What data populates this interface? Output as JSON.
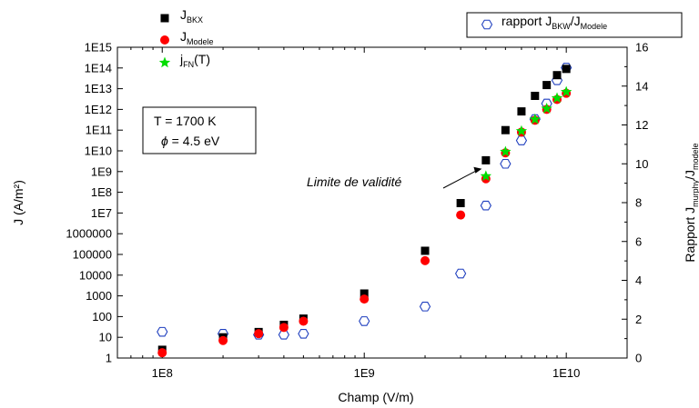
{
  "chart_data": {
    "type": "scatter",
    "x_axis": {
      "label": "Champ (V/m)",
      "scale": "log",
      "range": [
        60000000,
        20000000000
      ],
      "ticks": [
        {
          "value": 100000000,
          "label": "1E8"
        },
        {
          "value": 1000000000,
          "label": "1E9"
        },
        {
          "value": 10000000000,
          "label": "1E10"
        }
      ]
    },
    "y_left_axis": {
      "label": "J (A/m²)",
      "scale": "log",
      "range": [
        1,
        1000000000000000.0
      ],
      "tick_labels": [
        "1",
        "10",
        "100",
        "1000",
        "10000",
        "100000",
        "1000000",
        "1E7",
        "1E8",
        "1E9",
        "1E10",
        "1E11",
        "1E12",
        "1E13",
        "1E14",
        "1E15"
      ]
    },
    "y_right_axis": {
      "label_main": "Rapport J",
      "label_sub1": "murphy",
      "label_mid": "/J",
      "label_sub2": "modele",
      "scale": "linear",
      "range": [
        0,
        16
      ],
      "ticks": [
        0,
        2,
        4,
        6,
        8,
        10,
        12,
        14,
        16
      ]
    },
    "legend_left": {
      "position": "top-left",
      "entries": [
        {
          "series": "J_BKX",
          "main": "J",
          "sub": "BKX",
          "after": ""
        },
        {
          "series": "J_Modele",
          "main": "J",
          "sub": "Modele",
          "after": ""
        },
        {
          "series": "jFN",
          "main": "j",
          "sub": "FN",
          "after": "(T)"
        }
      ]
    },
    "legend_right": {
      "position": "top-right",
      "entries": [
        {
          "series": "ratio",
          "parts": [
            {
              "t": "rapport J",
              "sub": false
            },
            {
              "t": "BKW",
              "sub": true
            },
            {
              "t": "/J",
              "sub": false
            },
            {
              "t": "Modele",
              "sub": true
            }
          ]
        }
      ]
    },
    "params_box": {
      "line1": "T  = 1700 K",
      "line2_symbol": "ϕ",
      "line2_text": " = 4.5 eV"
    },
    "annotation": {
      "text": "Limite de validité",
      "target_x": 3900000000,
      "target_y": 1500000000
    },
    "series": [
      {
        "id": "J_BKX",
        "marker": "square",
        "color": "#000000",
        "axis": "left",
        "points": [
          [
            100000000,
            2.5
          ],
          [
            200000000,
            10
          ],
          [
            300000000,
            18
          ],
          [
            400000000,
            40
          ],
          [
            500000000,
            80
          ],
          [
            1000000000,
            1300
          ],
          [
            2000000000,
            150000
          ],
          [
            3000000000,
            30000000
          ],
          [
            4000000000,
            3500000000
          ],
          [
            5000000000,
            100000000000
          ],
          [
            6000000000,
            800000000000
          ],
          [
            7000000000,
            4500000000000
          ],
          [
            8000000000,
            15000000000000
          ],
          [
            9000000000,
            45000000000000
          ],
          [
            10000000000,
            90000000000000
          ]
        ]
      },
      {
        "id": "J_Modele",
        "marker": "circle",
        "color": "#ff0000",
        "axis": "left",
        "points": [
          [
            100000000,
            1.8
          ],
          [
            200000000,
            7
          ],
          [
            300000000,
            15
          ],
          [
            400000000,
            30
          ],
          [
            500000000,
            60
          ],
          [
            1000000000,
            700
          ],
          [
            2000000000,
            50000
          ],
          [
            3000000000,
            8000000
          ],
          [
            4000000000,
            450000000
          ],
          [
            5000000000,
            8000000000
          ],
          [
            6000000000,
            80000000000
          ],
          [
            7000000000,
            300000000000
          ],
          [
            8000000000,
            1000000000000
          ],
          [
            9000000000,
            3000000000000
          ],
          [
            10000000000,
            6000000000000
          ]
        ]
      },
      {
        "id": "jFN",
        "marker": "star",
        "color": "#00dd00",
        "axis": "left",
        "points": [
          [
            4000000000,
            600000000
          ],
          [
            5000000000,
            9000000000
          ],
          [
            6000000000,
            90000000000
          ],
          [
            7000000000,
            330000000000
          ],
          [
            8000000000,
            1100000000000
          ],
          [
            9000000000,
            3500000000000
          ],
          [
            10000000000,
            7000000000000
          ]
        ]
      },
      {
        "id": "ratio",
        "marker": "hexagon",
        "color": "#1f3fbf",
        "axis": "right",
        "points": [
          [
            100000000,
            1.35
          ],
          [
            200000000,
            1.25
          ],
          [
            300000000,
            1.2
          ],
          [
            400000000,
            1.2
          ],
          [
            500000000,
            1.25
          ],
          [
            1000000000,
            1.9
          ],
          [
            2000000000,
            2.65
          ],
          [
            3000000000,
            4.35
          ],
          [
            4000000000,
            7.85
          ],
          [
            5000000000,
            10
          ],
          [
            6000000000,
            11.2
          ],
          [
            7000000000,
            12.3
          ],
          [
            8000000000,
            13.1
          ],
          [
            9000000000,
            14.3
          ],
          [
            10000000000,
            14.95
          ]
        ]
      }
    ]
  }
}
